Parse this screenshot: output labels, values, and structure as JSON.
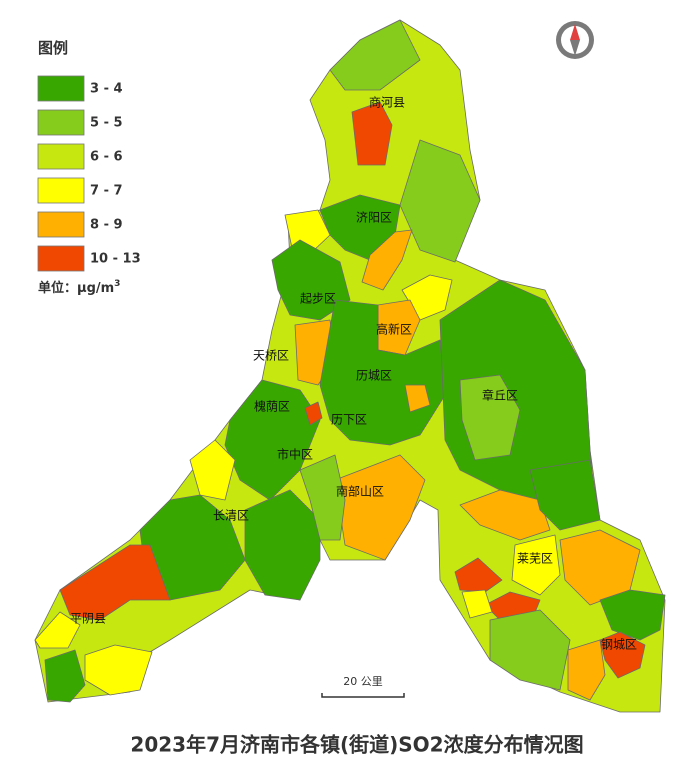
{
  "legend": {
    "title": "图例",
    "items": [
      {
        "label": "3 - 4",
        "color": "#38a800"
      },
      {
        "label": "5 - 5",
        "color": "#86cc1c"
      },
      {
        "label": "6 - 6",
        "color": "#c6e810"
      },
      {
        "label": "7 - 7",
        "color": "#ffff00"
      },
      {
        "label": "8 - 9",
        "color": "#ffb000"
      },
      {
        "label": "10 - 13",
        "color": "#f04800"
      }
    ],
    "unit": "单位：μg/m",
    "unit_sup": "3"
  },
  "districts": [
    "商河县",
    "济阳区",
    "起步区",
    "高新区",
    "天桥区",
    "历城区",
    "章丘区",
    "槐荫区",
    "历下区",
    "市中区",
    "南部山区",
    "长清区",
    "莱芜区",
    "平阴县",
    "钢城区"
  ],
  "scale": "20 公里",
  "title": "2023年7月济南市各镇(街道)SO2浓度分布情况图"
}
